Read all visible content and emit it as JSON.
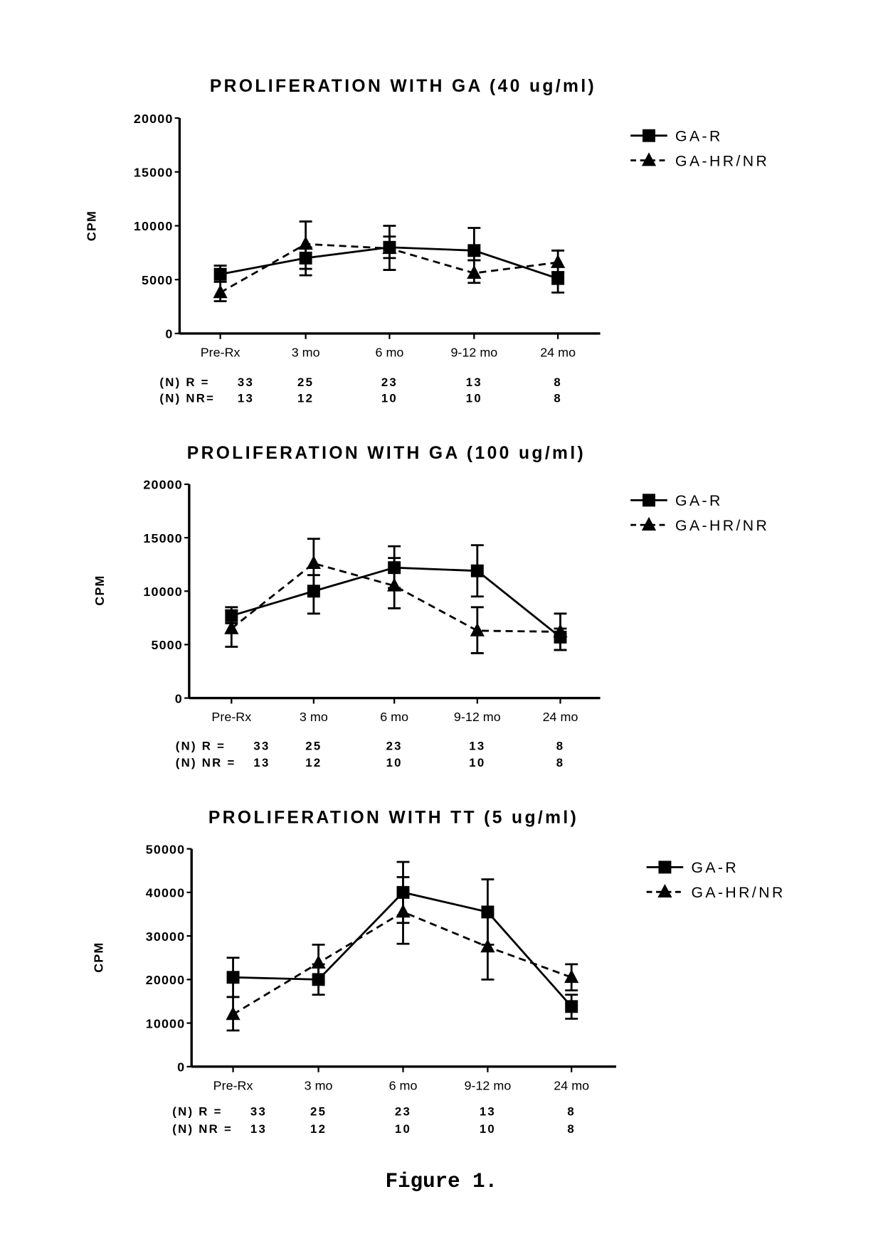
{
  "figure_caption": "Figure 1.",
  "chart_data": [
    {
      "type": "line",
      "title": "PROLIFERATION WITH GA (40 ug/ml)",
      "ylabel": "CPM",
      "xlabel": "",
      "ylim": [
        0,
        20000
      ],
      "yticks": [
        "0",
        "5000",
        "10000",
        "15000",
        "20000"
      ],
      "categories": [
        "Pre-Rx",
        "3 mo",
        "6 mo",
        "9-12 mo",
        "24 mo"
      ],
      "legend": [
        "GA-R",
        "GA-HR/NR"
      ],
      "legend_position": "top-right",
      "series": [
        {
          "name": "GA-R",
          "marker": "square",
          "line": "solid",
          "values": [
            5500,
            7000,
            8000,
            7700,
            5100
          ],
          "err_hi": [
            6300,
            8000,
            10000,
            9800,
            5700
          ],
          "err_lo": [
            4800,
            6000,
            5900,
            6800,
            3800
          ]
        },
        {
          "name": "GA-HR/NR",
          "marker": "triangle",
          "line": "dashed",
          "values": [
            3800,
            8300,
            7900,
            5600,
            6600
          ],
          "err_hi": [
            4800,
            10400,
            9000,
            6800,
            7700
          ],
          "err_lo": [
            3000,
            5400,
            7000,
            4700,
            5700
          ]
        }
      ],
      "n_rows": [
        {
          "label": "(N) R =",
          "values": [
            "33",
            "25",
            "23",
            "13",
            "8"
          ]
        },
        {
          "label": "(N) NR=",
          "values": [
            "13",
            "12",
            "10",
            "10",
            "8"
          ]
        }
      ]
    },
    {
      "type": "line",
      "title": "PROLIFERATION WITH GA (100 ug/ml)",
      "ylabel": "CPM",
      "xlabel": "",
      "ylim": [
        0,
        20000
      ],
      "yticks": [
        "0",
        "5000",
        "10000",
        "15000",
        "20000"
      ],
      "categories": [
        "Pre-Rx",
        "3 mo",
        "6 mo",
        "9-12 mo",
        "24 mo"
      ],
      "legend": [
        "GA-R",
        "GA-HR/NR"
      ],
      "legend_position": "top-right",
      "series": [
        {
          "name": "GA-R",
          "marker": "square",
          "line": "solid",
          "values": [
            7700,
            10000,
            12200,
            11900,
            5700
          ],
          "err_hi": [
            8500,
            11500,
            14200,
            14300,
            6500
          ],
          "err_lo": [
            7000,
            7900,
            10300,
            9500,
            4500
          ]
        },
        {
          "name": "GA-HR/NR",
          "marker": "triangle",
          "line": "dashed",
          "values": [
            6500,
            12600,
            10500,
            6300,
            6200
          ],
          "err_hi": [
            8200,
            14900,
            13100,
            8500,
            7900
          ],
          "err_lo": [
            4800,
            10300,
            8400,
            4200,
            4500
          ]
        }
      ],
      "n_rows": [
        {
          "label": "(N) R  =",
          "values": [
            "33",
            "25",
            "23",
            "13",
            "8"
          ]
        },
        {
          "label": "(N) NR =",
          "values": [
            "13",
            "12",
            "10",
            "10",
            "8"
          ]
        }
      ]
    },
    {
      "type": "line",
      "title": "PROLIFERATION WITH TT (5 ug/ml)",
      "ylabel": "CPM",
      "xlabel": "",
      "ylim": [
        0,
        50000
      ],
      "yticks": [
        "0",
        "10000",
        "20000",
        "30000",
        "40000",
        "50000"
      ],
      "categories": [
        "Pre-Rx",
        "3 mo",
        "6 mo",
        "9-12 mo",
        "24 mo"
      ],
      "legend": [
        "GA-R",
        "GA-HR/NR"
      ],
      "legend_position": "top-right",
      "series": [
        {
          "name": "GA-R",
          "marker": "square",
          "line": "solid",
          "values": [
            20500,
            20000,
            40000,
            35500,
            13800
          ],
          "err_hi": [
            25000,
            23500,
            47000,
            43000,
            16500
          ],
          "err_lo": [
            16000,
            16500,
            33000,
            28000,
            11000
          ]
        },
        {
          "name": "GA-HR/NR",
          "marker": "triangle",
          "line": "dashed",
          "values": [
            12000,
            23800,
            35500,
            27500,
            20500
          ],
          "err_hi": [
            16000,
            28000,
            43500,
            35000,
            23500
          ],
          "err_lo": [
            8300,
            19500,
            28200,
            20000,
            17500
          ]
        }
      ],
      "n_rows": [
        {
          "label": "(N) R  =",
          "values": [
            "33",
            "25",
            "23",
            "13",
            "8"
          ]
        },
        {
          "label": "(N) NR =",
          "values": [
            "13",
            "12",
            "10",
            "10",
            "8"
          ]
        }
      ]
    }
  ]
}
